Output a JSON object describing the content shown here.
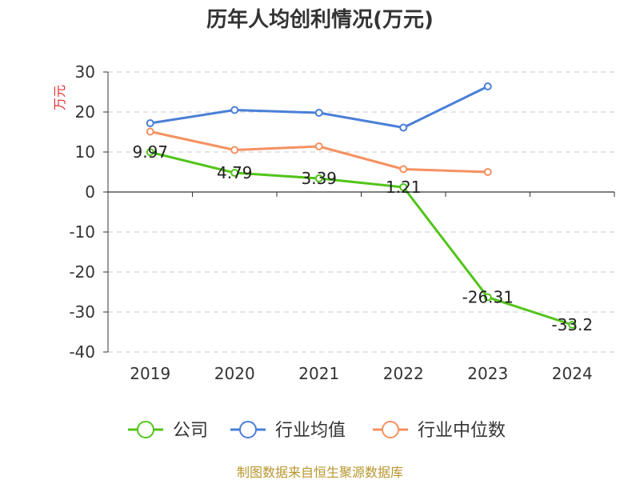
{
  "chart_data": {
    "type": "line",
    "title": "历年人均创利情况(万元)",
    "ylabel": "万元",
    "xlabel": "",
    "categories": [
      "2019",
      "2020",
      "2021",
      "2022",
      "2023",
      "2024"
    ],
    "ylim": [
      -40,
      30
    ],
    "yticks": [
      30,
      20,
      10,
      0,
      -10,
      -20,
      -30,
      -40
    ],
    "ytick_labels": [
      "30",
      "20",
      "10",
      "0",
      "-10",
      "-20",
      "-30",
      "-40"
    ],
    "grid": true,
    "legend_position": "bottom",
    "series": [
      {
        "name": "公司",
        "color": "#52c41a",
        "values": [
          9.97,
          4.79,
          3.39,
          1.21,
          -26.31,
          -33.2
        ],
        "labels": [
          "9.97",
          "4.79",
          "3.39",
          "1.21",
          "-26.31",
          "-33.2"
        ]
      },
      {
        "name": "行业均值",
        "color": "#4a7fd8",
        "values": [
          17.2,
          20.5,
          19.8,
          16.1,
          26.4,
          null
        ]
      },
      {
        "name": "行业中位数",
        "color": "#f59160",
        "values": [
          15.1,
          10.5,
          11.4,
          5.7,
          5.0,
          null
        ]
      }
    ],
    "source": "制图数据来自恒生聚源数据库",
    "source_color": "#b8962e",
    "ylabel_color": "#e03030"
  }
}
